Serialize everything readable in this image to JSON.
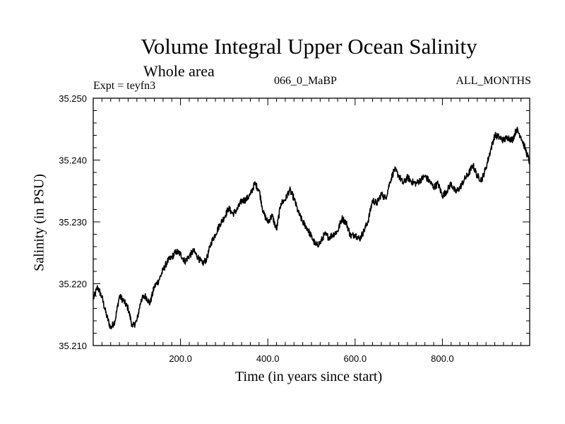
{
  "chart_data": {
    "type": "line",
    "title": "Volume Integral Upper Ocean Salinity",
    "subtitle": "Whole area",
    "expt_label": "Expt = teyfn3",
    "run_label": "066_0_MaBP",
    "months_label": "ALL_MONTHS",
    "xlabel": "Time (in years since start)",
    "ylabel": "Salinity (in PSU)",
    "xlim": [
      0,
      1000
    ],
    "ylim": [
      35.21,
      35.25
    ],
    "x_ticks": [
      200,
      400,
      600,
      800
    ],
    "x_tick_labels": [
      "200.0",
      "400.0",
      "600.0",
      "800.0"
    ],
    "y_ticks": [
      35.21,
      35.22,
      35.23,
      35.24,
      35.25
    ],
    "y_tick_labels": [
      "35.210",
      "35.220",
      "35.230",
      "35.240",
      "35.250"
    ],
    "series": [
      {
        "name": "Salinity",
        "color": "#000000",
        "x": [
          0,
          10,
          20,
          30,
          40,
          50,
          60,
          70,
          80,
          90,
          100,
          110,
          120,
          130,
          140,
          150,
          160,
          170,
          180,
          190,
          200,
          210,
          220,
          230,
          240,
          250,
          260,
          270,
          280,
          290,
          300,
          310,
          320,
          330,
          340,
          350,
          360,
          370,
          380,
          390,
          400,
          410,
          420,
          430,
          440,
          450,
          460,
          470,
          480,
          490,
          500,
          510,
          520,
          530,
          540,
          550,
          560,
          570,
          580,
          590,
          600,
          610,
          620,
          630,
          640,
          650,
          660,
          670,
          680,
          690,
          700,
          710,
          720,
          730,
          740,
          750,
          760,
          770,
          780,
          790,
          800,
          810,
          820,
          830,
          840,
          850,
          860,
          870,
          880,
          890,
          900,
          910,
          920,
          930,
          940,
          950,
          960,
          970,
          980,
          990,
          1000
        ],
        "values": [
          35.2175,
          35.2195,
          35.2178,
          35.215,
          35.2128,
          35.214,
          35.218,
          35.2172,
          35.216,
          35.213,
          35.214,
          35.2175,
          35.218,
          35.2168,
          35.2195,
          35.2205,
          35.2222,
          35.2236,
          35.2243,
          35.2252,
          35.2248,
          35.2236,
          35.2245,
          35.2253,
          35.2243,
          35.2232,
          35.224,
          35.2266,
          35.228,
          35.2296,
          35.2307,
          35.2322,
          35.2313,
          35.232,
          35.2334,
          35.2336,
          35.2344,
          35.2362,
          35.2352,
          35.2314,
          35.23,
          35.231,
          35.2287,
          35.233,
          35.2336,
          35.2352,
          35.2338,
          35.2315,
          35.23,
          35.229,
          35.2276,
          35.2262,
          35.2266,
          35.228,
          35.2275,
          35.228,
          35.2285,
          35.2306,
          35.2298,
          35.2277,
          35.228,
          35.2272,
          35.2285,
          35.2302,
          35.2335,
          35.233,
          35.2345,
          35.2338,
          35.2365,
          35.2385,
          35.2375,
          35.2362,
          35.2372,
          35.2365,
          35.2362,
          35.2368,
          35.2374,
          35.2366,
          35.2356,
          35.2362,
          35.2342,
          35.235,
          35.2362,
          35.2348,
          35.2355,
          35.2368,
          35.2378,
          35.2392,
          35.2374,
          35.2368,
          35.2388,
          35.2415,
          35.244,
          35.2437,
          35.2432,
          35.2437,
          35.2432,
          35.245,
          35.2438,
          35.2418,
          35.2396
        ]
      }
    ]
  }
}
